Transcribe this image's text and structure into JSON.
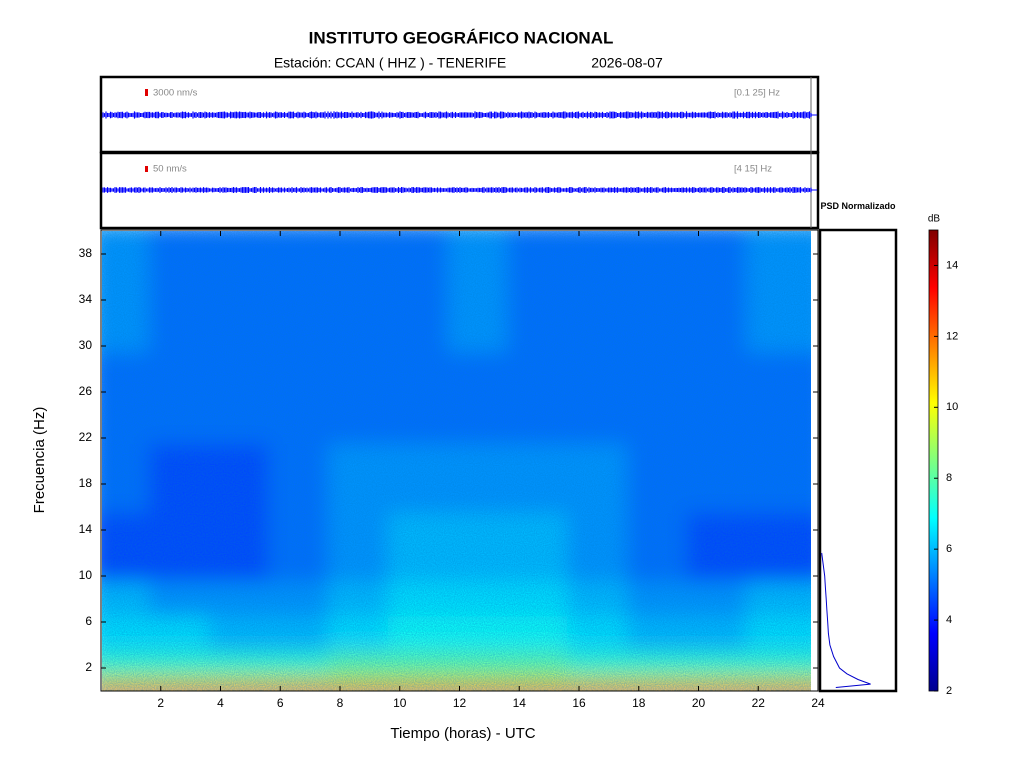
{
  "chart_data": {
    "type": "spectrogram",
    "title": "INSTITUTO GEOGRÁFICO NACIONAL",
    "station": "Estación:  CCAN ( HHZ ) - TENERIFE",
    "date": "2026-08-07",
    "xlabel": "Tiempo (horas) - UTC",
    "ylabel": "Frecuencia  (Hz)",
    "xlim": [
      0,
      24
    ],
    "ylim": [
      0,
      40
    ],
    "xticks": [
      2,
      4,
      6,
      8,
      10,
      12,
      14,
      16,
      18,
      20,
      22,
      24
    ],
    "yticks": [
      2,
      6,
      10,
      14,
      18,
      22,
      26,
      30,
      34,
      38
    ],
    "time_bins": [
      0,
      2,
      4,
      6,
      8,
      10,
      12,
      14,
      16,
      18,
      20,
      22,
      24
    ],
    "freq_bins": [
      0,
      1,
      2,
      4,
      7,
      10,
      16,
      22,
      30,
      40
    ],
    "values": [
      [
        13,
        13,
        13,
        13,
        13,
        13,
        13,
        13,
        13,
        13,
        13,
        13
      ],
      [
        9.5,
        9.5,
        9.5,
        9.5,
        9.5,
        9.5,
        9.5,
        9.5,
        9.5,
        9.5,
        9.5,
        9.5
      ],
      [
        7.5,
        7.5,
        7.5,
        7.5,
        8,
        8,
        8,
        8,
        7.5,
        7.5,
        7.5,
        7.5
      ],
      [
        6.5,
        6.5,
        6,
        6,
        6.5,
        7,
        7,
        7,
        6.5,
        6,
        6,
        6.5
      ],
      [
        6,
        5.5,
        5.5,
        5.5,
        6,
        6.5,
        6.5,
        6.5,
        6,
        5.5,
        5.5,
        6
      ],
      [
        4.5,
        4.5,
        4.5,
        5,
        5.5,
        6,
        6,
        6,
        5.5,
        5,
        4.5,
        4.5
      ],
      [
        5,
        4.5,
        4.5,
        5,
        5.5,
        5.5,
        5.5,
        5.5,
        5.5,
        5,
        5,
        5
      ],
      [
        5,
        5,
        5,
        5,
        5,
        5,
        5,
        5,
        5,
        5,
        5,
        5
      ],
      [
        5.5,
        5,
        5,
        5,
        5,
        5,
        5.5,
        5,
        5,
        5,
        5,
        5.5
      ]
    ],
    "traces": [
      {
        "scale_label": "3000 nm/s",
        "band_label": "[0.1 25] Hz",
        "color": "#0000ff"
      },
      {
        "scale_label": "50 nm/s",
        "band_label": "[4 15] Hz",
        "color": "#0000ff"
      }
    ],
    "psd": {
      "title": "PSD Normalizado",
      "xlim": [
        0,
        1
      ],
      "color": "#0000cc",
      "freqs": [
        0.3,
        0.6,
        1,
        1.5,
        2,
        3,
        4,
        5,
        6,
        7,
        8,
        9,
        10,
        11,
        12
      ],
      "values": [
        0.2,
        0.67,
        0.5,
        0.35,
        0.25,
        0.17,
        0.12,
        0.1,
        0.09,
        0.08,
        0.07,
        0.06,
        0.05,
        0.03,
        0.01
      ]
    },
    "colorbar": {
      "label": "dB",
      "clim": [
        2,
        15
      ],
      "ticks": [
        2,
        4,
        6,
        8,
        10,
        12,
        14
      ]
    }
  }
}
